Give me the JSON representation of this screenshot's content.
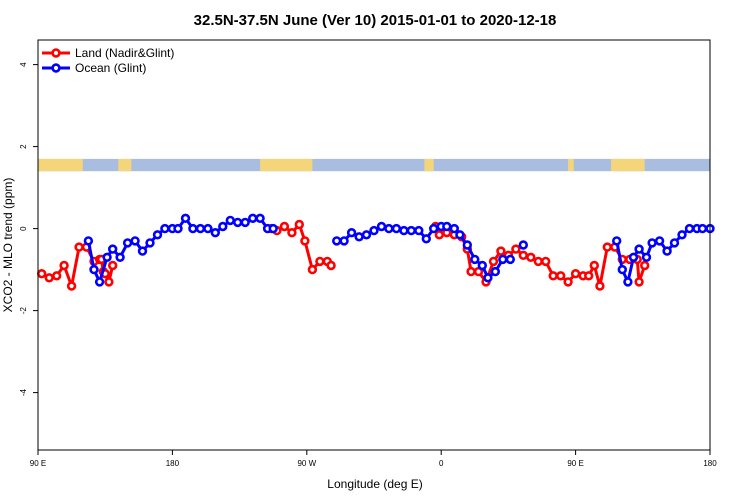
{
  "chart_data": {
    "type": "line",
    "title": "32.5N-37.5N June (Ver 10)   2015-01-01 to 2020-12-18",
    "xlabel": "Longitude (deg E)",
    "ylabel": "XCO2 - MLO trend (ppm)",
    "xlim": [
      90,
      450
    ],
    "ylim": [
      -5.4,
      4.6
    ],
    "x_tick_values": [
      90,
      162,
      234,
      306,
      378,
      450
    ],
    "x_tick_labels": [
      "90 E",
      "180",
      "90 W",
      "0",
      "90 E",
      "180"
    ],
    "y_tick_values": [
      -4,
      -2,
      0,
      2,
      4
    ],
    "y_tick_labels": [
      "-4",
      "-2",
      "0",
      "2",
      "4"
    ],
    "grid": false,
    "legend_position": "top-left",
    "land_strip": {
      "y_range": [
        1.4,
        1.7
      ],
      "ocean_color": "#a9bde0",
      "land_color": "#f5d57a",
      "land_segments": [
        [
          90,
          114
        ],
        [
          133,
          140
        ],
        [
          209,
          237
        ],
        [
          297,
          302
        ],
        [
          374,
          377
        ],
        [
          397,
          415
        ],
        [
          451,
          451
        ]
      ]
    },
    "series": [
      {
        "name": "Land (Nadir&Glint)",
        "color": "#ff0000",
        "segments": [
          {
            "x": [
              92,
              96,
              100,
              104,
              108,
              112,
              116,
              120,
              123,
              124,
              125,
              126,
              128,
              130
            ],
            "y": [
              -1.1,
              -1.2,
              -1.15,
              -0.9,
              -1.4,
              -0.45,
              -0.45,
              -0.8,
              -0.75,
              -0.75,
              -1.05,
              -1.1,
              -1.3,
              -0.9
            ]
          },
          {
            "x": [
              215,
              218,
              222,
              226,
              230,
              233,
              237,
              241,
              245
            ],
            "y": [
              0,
              -0.05,
              0.05,
              -0.1,
              0.1,
              -0.3,
              -1.0,
              -0.8,
              -0.8
            ]
          },
          {
            "x": [
              247
            ],
            "y": [
              -0.9
            ]
          },
          {
            "x": [
              303,
              305,
              309,
              313,
              317,
              320,
              322,
              326,
              330,
              334,
              338,
              342,
              346,
              350,
              354,
              358,
              362,
              366,
              370,
              374,
              378,
              382,
              385,
              388,
              391,
              395,
              399,
              403,
              407,
              411,
              412,
              415
            ],
            "y": [
              0.05,
              -0.15,
              -0.1,
              -0.15,
              -0.2,
              -0.5,
              -1.05,
              -1.05,
              -1.3,
              -0.8,
              -0.55,
              -0.65,
              -0.5,
              -0.65,
              -0.7,
              -0.8,
              -0.8,
              -1.15,
              -1.15,
              -1.3,
              -1.1,
              -1.15,
              -1.15,
              -0.9,
              -1.4,
              -0.45,
              -0.45,
              -0.75,
              -0.75,
              -0.75,
              -1.3,
              -0.9
            ]
          }
        ]
      },
      {
        "name": "Ocean (Glint)",
        "color": "#0000ff",
        "segments": [
          {
            "x": [
              117,
              120,
              123,
              127,
              130,
              134,
              138,
              142,
              146,
              150,
              154,
              158,
              162,
              165,
              169,
              173,
              177,
              181,
              185,
              189,
              193,
              197,
              201,
              205,
              209,
              213,
              216
            ],
            "y": [
              -0.3,
              -1.0,
              -1.3,
              -0.7,
              -0.5,
              -0.7,
              -0.35,
              -0.3,
              -0.55,
              -0.35,
              -0.15,
              0.0,
              0.0,
              0.0,
              0.25,
              0.0,
              0.0,
              0.0,
              -0.1,
              0.05,
              0.2,
              0.15,
              0.15,
              0.25,
              0.25,
              0.0,
              0.0
            ]
          },
          {
            "x": [
              250,
              254,
              258,
              262,
              266,
              270,
              274,
              278,
              282,
              286,
              290,
              294,
              298,
              302,
              306,
              309,
              313,
              316,
              320,
              324,
              328,
              331,
              335,
              339,
              343
            ],
            "y": [
              -0.3,
              -0.3,
              -0.1,
              -0.2,
              -0.15,
              -0.05,
              0.05,
              0.0,
              0.0,
              -0.05,
              -0.05,
              -0.05,
              -0.25,
              0.0,
              0.05,
              0.05,
              0.0,
              -0.15,
              -0.4,
              -0.75,
              -0.9,
              -1.2,
              -1.05,
              -0.75,
              -0.75
            ]
          },
          {
            "x": [
              350
            ],
            "y": [
              -0.4
            ]
          },
          {
            "x": [
              400,
              403,
              406,
              409,
              412,
              416,
              419,
              423,
              427,
              431,
              435,
              439,
              443,
              446,
              450
            ],
            "y": [
              -0.3,
              -1.0,
              -1.3,
              -0.7,
              -0.5,
              -0.7,
              -0.35,
              -0.3,
              -0.55,
              -0.35,
              -0.15,
              0.0,
              0.0,
              0.0,
              0.0
            ]
          }
        ]
      }
    ]
  }
}
